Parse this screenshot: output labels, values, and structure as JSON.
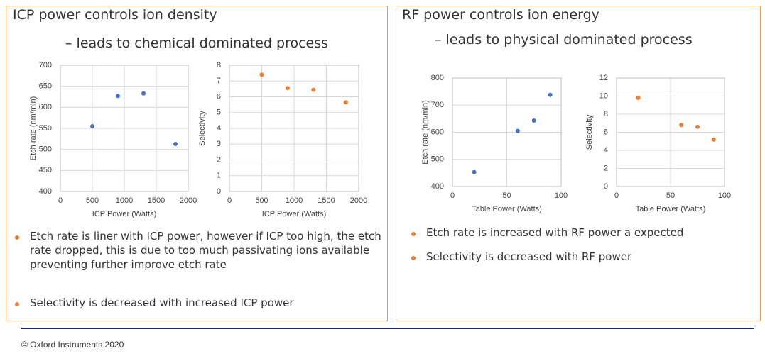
{
  "left_panel": {
    "title": "ICP power controls ion density",
    "subtitle": "– leads to chemical dominated process",
    "bullets": [
      "Etch rate is liner with ICP power, however if ICP too high, the etch rate dropped, this is due to too much passivating ions available preventing further improve etch rate",
      "Selectivity is decreased with increased ICP power"
    ]
  },
  "right_panel": {
    "title": "RF power controls ion energy",
    "subtitle": "– leads to physical dominated process",
    "bullets": [
      "Etch rate is increased with RF power a expected",
      "Selectivity is decreased with RF power"
    ]
  },
  "chart_data": [
    {
      "type": "scatter",
      "x_label": "ICP Power (Watts)",
      "y_label": "Etch rate (nm/min)",
      "x": [
        500,
        900,
        1300,
        1800
      ],
      "values": [
        555,
        627,
        633,
        513
      ],
      "color": "#4472c4",
      "xlim": [
        0,
        2000
      ],
      "xticks": [
        0,
        500,
        1000,
        1500,
        2000
      ],
      "ylim": [
        400,
        700
      ],
      "yticks": [
        400,
        450,
        500,
        550,
        600,
        650,
        700
      ],
      "grid": true
    },
    {
      "type": "scatter",
      "x_label": "ICP Power (Watts)",
      "y_label": "Selectivity",
      "x": [
        500,
        900,
        1300,
        1800
      ],
      "values": [
        7.4,
        6.55,
        6.45,
        5.65
      ],
      "color": "#ed7d31",
      "xlim": [
        0,
        2000
      ],
      "xticks": [
        0,
        500,
        1000,
        1500,
        2000
      ],
      "ylim": [
        0,
        8
      ],
      "yticks": [
        0,
        1,
        2,
        3,
        4,
        5,
        6,
        7,
        8
      ],
      "grid": true
    },
    {
      "type": "scatter",
      "x_label": "Table Power (Watts)",
      "y_label": "Etch rate (nm/min)",
      "x": [
        20,
        60,
        75,
        90
      ],
      "values": [
        453,
        605,
        643,
        738
      ],
      "color": "#4472c4",
      "xlim": [
        0,
        100
      ],
      "xticks": [
        0,
        50,
        100
      ],
      "ylim": [
        400,
        800
      ],
      "yticks": [
        400,
        500,
        600,
        700,
        800
      ],
      "grid": true
    },
    {
      "type": "scatter",
      "x_label": "Table Power (Watts)",
      "y_label": "Selectivity",
      "x": [
        20,
        60,
        75,
        90
      ],
      "values": [
        9.8,
        6.8,
        6.6,
        5.2
      ],
      "color": "#ed7d31",
      "xlim": [
        0,
        100
      ],
      "xticks": [
        0,
        50,
        100
      ],
      "ylim": [
        0,
        12
      ],
      "yticks": [
        0,
        2,
        4,
        6,
        8,
        10,
        12
      ],
      "grid": true
    }
  ],
  "footer": "© Oxford Instruments 2020"
}
